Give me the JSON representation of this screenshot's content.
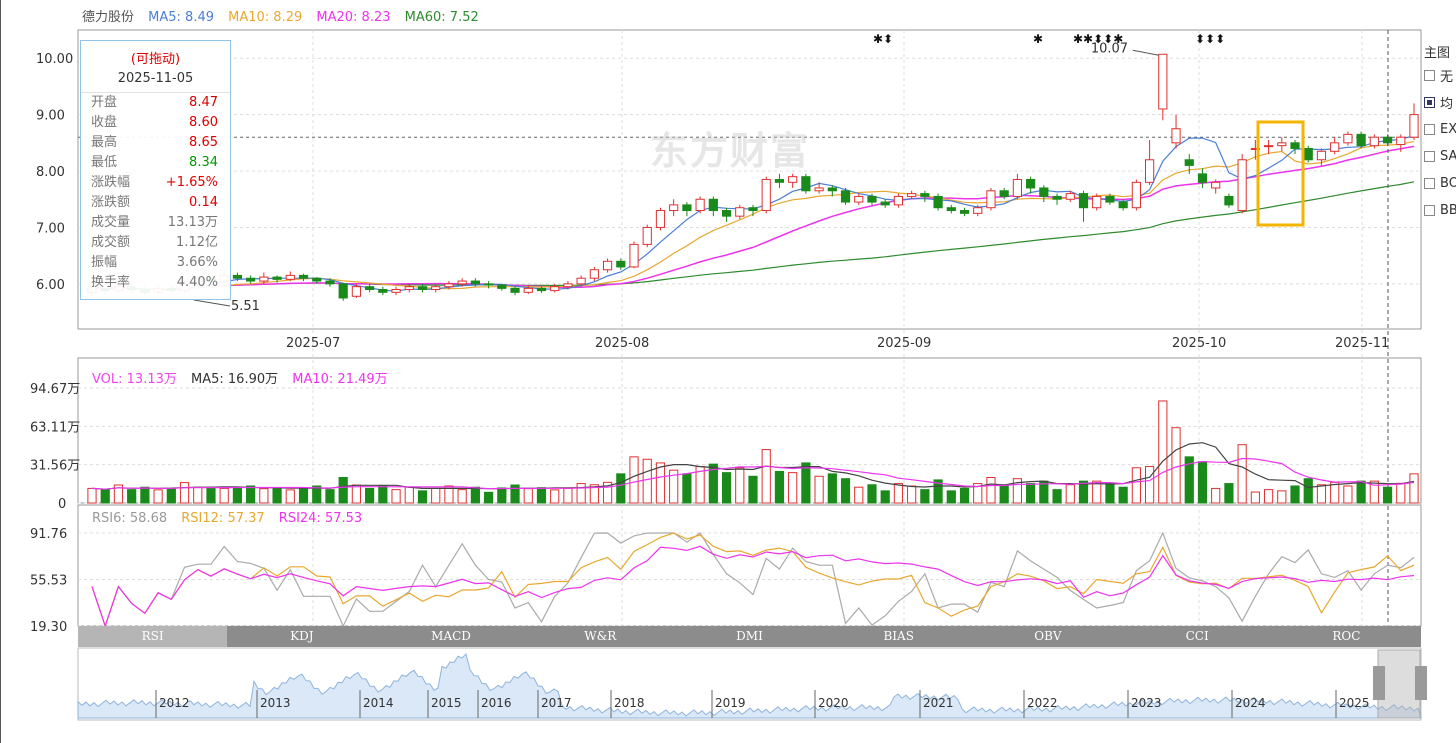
{
  "stock": {
    "name": "德力股份",
    "ma_legend": [
      {
        "label": "MA5: 8.49",
        "color": "#4a7fd6"
      },
      {
        "label": "MA10: 8.29",
        "color": "#e8a830"
      },
      {
        "label": "MA20: 8.23",
        "color": "#ee33ee"
      },
      {
        "label": "MA60: 7.52",
        "color": "#2e8b2e"
      }
    ]
  },
  "tooltip": {
    "hint": "(可拖动)",
    "date": "2025-11-05",
    "rows": [
      {
        "k": "开盘",
        "v": "8.47",
        "color": "#d00"
      },
      {
        "k": "收盘",
        "v": "8.60",
        "color": "#d00"
      },
      {
        "k": "最高",
        "v": "8.65",
        "color": "#d00"
      },
      {
        "k": "最低",
        "v": "8.34",
        "color": "#090"
      },
      {
        "k": "涨跌幅",
        "v": "+1.65%",
        "color": "#d00"
      },
      {
        "k": "涨跌额",
        "v": "0.14",
        "color": "#d00"
      },
      {
        "k": "成交量",
        "v": "13.13万",
        "color": "#777"
      },
      {
        "k": "成交额",
        "v": "1.12亿",
        "color": "#777"
      },
      {
        "k": "振幅",
        "v": "3.66%",
        "color": "#777"
      },
      {
        "k": "换手率",
        "v": "4.40%",
        "color": "#777"
      }
    ]
  },
  "watermark": "东方财富",
  "main_axis": {
    "y_ticks": [
      "10.00",
      "9.00",
      "8.00",
      "7.00",
      "6.00"
    ],
    "x_ticks": [
      "2025-07",
      "2025-08",
      "2025-09",
      "2025-10",
      "2025-11"
    ],
    "annotations": {
      "max": "10.07",
      "min": "5.51"
    },
    "ref_price": 8.6
  },
  "markers": [
    "✱⬍",
    "✱",
    "✱✱⬍⬍✱",
    "⬍⬍⬍"
  ],
  "volume": {
    "legend": [
      {
        "label": "VOL: 13.13万",
        "color": "#ee44ee"
      },
      {
        "label": "MA5: 16.90万",
        "color": "#333333"
      },
      {
        "label": "MA10: 21.49万",
        "color": "#ee33ee"
      }
    ],
    "y_ticks": [
      "94.67万",
      "63.11万",
      "31.56万",
      "0"
    ]
  },
  "rsi": {
    "legend": [
      {
        "label": "RSI6: 58.68",
        "color": "#999999"
      },
      {
        "label": "RSI12: 57.37",
        "color": "#e8a830"
      },
      {
        "label": "RSI24: 57.53",
        "color": "#ee33ee"
      }
    ],
    "y_ticks": [
      "91.76",
      "55.53",
      "19.30"
    ]
  },
  "tabs": [
    "RSI",
    "KDJ",
    "MACD",
    "W&R",
    "DMI",
    "BIAS",
    "OBV",
    "CCI",
    "ROC"
  ],
  "active_tab": "RSI",
  "navigator_years": [
    "2012",
    "2013",
    "2014",
    "2015",
    "2016",
    "2017",
    "2018",
    "2019",
    "2020",
    "2021",
    "2022",
    "2023",
    "2024",
    "2025"
  ],
  "right_panel": {
    "title": "主图",
    "items": [
      {
        "label": "无",
        "checked": false
      },
      {
        "label": "均",
        "checked": true
      },
      {
        "label": "EX",
        "checked": false
      },
      {
        "label": "SA",
        "checked": false
      },
      {
        "label": "BO",
        "checked": false
      },
      {
        "label": "BB",
        "checked": false
      }
    ]
  },
  "chart_data": {
    "type": "candlestick",
    "title": "德力股份",
    "x_range": [
      "2025-06",
      "2025-11-05"
    ],
    "price_range": [
      5.2,
      10.5
    ],
    "candles": [
      [
        5.85,
        5.95,
        6.0,
        5.8
      ],
      [
        5.9,
        5.88,
        5.95,
        5.82
      ],
      [
        5.88,
        5.95,
        6.0,
        5.85
      ],
      [
        5.95,
        5.9,
        6.0,
        5.85
      ],
      [
        5.9,
        5.85,
        5.95,
        5.8
      ],
      [
        5.85,
        5.92,
        5.97,
        5.82
      ],
      [
        5.92,
        5.88,
        5.97,
        5.84
      ],
      [
        5.88,
        6.0,
        6.05,
        5.85
      ],
      [
        6.0,
        6.1,
        6.15,
        5.95
      ],
      [
        6.1,
        6.05,
        6.15,
        6.0
      ],
      [
        6.05,
        6.15,
        6.25,
        6.0
      ],
      [
        6.15,
        6.1,
        6.2,
        6.05
      ],
      [
        6.1,
        6.05,
        6.15,
        6.0
      ],
      [
        6.05,
        6.12,
        6.2,
        6.0
      ],
      [
        6.12,
        6.08,
        6.15,
        6.02
      ],
      [
        6.08,
        6.15,
        6.22,
        6.05
      ],
      [
        6.15,
        6.1,
        6.18,
        6.05
      ],
      [
        6.1,
        6.05,
        6.12,
        6.0
      ],
      [
        6.05,
        6.0,
        6.1,
        5.95
      ],
      [
        6.0,
        5.75,
        6.02,
        5.7
      ],
      [
        5.78,
        5.95,
        6.0,
        5.75
      ],
      [
        5.95,
        5.9,
        6.0,
        5.85
      ],
      [
        5.9,
        5.85,
        5.95,
        5.8
      ],
      [
        5.85,
        5.9,
        5.95,
        5.8
      ],
      [
        5.9,
        5.95,
        6.0,
        5.85
      ],
      [
        5.95,
        5.9,
        6.0,
        5.85
      ],
      [
        5.9,
        5.95,
        6.0,
        5.85
      ],
      [
        5.95,
        6.0,
        6.05,
        5.9
      ],
      [
        6.0,
        6.05,
        6.1,
        5.95
      ],
      [
        6.05,
        6.0,
        6.1,
        5.95
      ],
      [
        6.0,
        5.98,
        6.05,
        5.92
      ],
      [
        5.98,
        5.92,
        6.0,
        5.88
      ],
      [
        5.92,
        5.85,
        5.95,
        5.8
      ],
      [
        5.85,
        5.92,
        5.98,
        5.82
      ],
      [
        5.92,
        5.88,
        5.95,
        5.84
      ],
      [
        5.88,
        5.95,
        6.0,
        5.85
      ],
      [
        5.95,
        6.0,
        6.05,
        5.9
      ],
      [
        6.0,
        6.1,
        6.15,
        5.95
      ],
      [
        6.1,
        6.25,
        6.3,
        6.05
      ],
      [
        6.25,
        6.4,
        6.45,
        6.2
      ],
      [
        6.4,
        6.3,
        6.45,
        6.25
      ],
      [
        6.3,
        6.7,
        6.75,
        6.28
      ],
      [
        6.7,
        7.0,
        7.05,
        6.65
      ],
      [
        7.0,
        7.3,
        7.35,
        6.95
      ],
      [
        7.3,
        7.4,
        7.5,
        7.2
      ],
      [
        7.4,
        7.3,
        7.45,
        7.2
      ],
      [
        7.3,
        7.5,
        7.55,
        7.25
      ],
      [
        7.5,
        7.3,
        7.55,
        7.2
      ],
      [
        7.3,
        7.2,
        7.35,
        7.1
      ],
      [
        7.2,
        7.35,
        7.4,
        7.15
      ],
      [
        7.35,
        7.3,
        7.4,
        7.2
      ],
      [
        7.3,
        7.85,
        7.9,
        7.25
      ],
      [
        7.85,
        7.8,
        7.95,
        7.7
      ],
      [
        7.8,
        7.9,
        7.95,
        7.7
      ],
      [
        7.9,
        7.65,
        7.95,
        7.6
      ],
      [
        7.65,
        7.7,
        7.8,
        7.6
      ],
      [
        7.7,
        7.65,
        7.75,
        7.55
      ],
      [
        7.65,
        7.45,
        7.7,
        7.4
      ],
      [
        7.45,
        7.55,
        7.6,
        7.4
      ],
      [
        7.55,
        7.45,
        7.6,
        7.4
      ],
      [
        7.45,
        7.4,
        7.5,
        7.35
      ],
      [
        7.4,
        7.55,
        7.6,
        7.35
      ],
      [
        7.55,
        7.6,
        7.65,
        7.5
      ],
      [
        7.6,
        7.55,
        7.65,
        7.45
      ],
      [
        7.55,
        7.35,
        7.6,
        7.3
      ],
      [
        7.35,
        7.3,
        7.4,
        7.25
      ],
      [
        7.3,
        7.25,
        7.35,
        7.2
      ],
      [
        7.25,
        7.35,
        7.4,
        7.2
      ],
      [
        7.35,
        7.65,
        7.7,
        7.3
      ],
      [
        7.65,
        7.55,
        7.7,
        7.5
      ],
      [
        7.55,
        7.85,
        7.95,
        7.5
      ],
      [
        7.85,
        7.7,
        7.9,
        7.6
      ],
      [
        7.7,
        7.55,
        7.75,
        7.45
      ],
      [
        7.55,
        7.5,
        7.6,
        7.4
      ],
      [
        7.5,
        7.6,
        7.65,
        7.45
      ],
      [
        7.6,
        7.35,
        7.65,
        7.1
      ],
      [
        7.35,
        7.55,
        7.6,
        7.3
      ],
      [
        7.55,
        7.45,
        7.6,
        7.4
      ],
      [
        7.45,
        7.35,
        7.5,
        7.3
      ],
      [
        7.35,
        7.8,
        7.85,
        7.3
      ],
      [
        7.8,
        8.2,
        8.55,
        7.75
      ],
      [
        9.1,
        10.07,
        10.07,
        8.9
      ],
      [
        8.5,
        8.75,
        9.0,
        8.4
      ],
      [
        8.2,
        8.1,
        8.3,
        7.95
      ],
      [
        7.95,
        7.8,
        8.05,
        7.7
      ],
      [
        7.7,
        7.8,
        7.85,
        7.6
      ],
      [
        7.55,
        7.4,
        7.6,
        7.35
      ],
      [
        7.3,
        8.2,
        8.3,
        7.25
      ],
      [
        8.4,
        8.4,
        8.55,
        8.2
      ],
      [
        8.45,
        8.45,
        8.55,
        8.3
      ],
      [
        8.45,
        8.5,
        8.6,
        8.35
      ],
      [
        8.5,
        8.4,
        8.55,
        8.3
      ],
      [
        8.4,
        8.2,
        8.45,
        8.15
      ],
      [
        8.2,
        8.35,
        8.4,
        8.1
      ],
      [
        8.35,
        8.5,
        8.6,
        8.3
      ],
      [
        8.5,
        8.65,
        8.7,
        8.45
      ],
      [
        8.65,
        8.45,
        8.7,
        8.4
      ],
      [
        8.45,
        8.6,
        8.65,
        8.4
      ],
      [
        8.6,
        8.5,
        8.65,
        8.45
      ],
      [
        8.47,
        8.6,
        8.65,
        8.34
      ],
      [
        8.6,
        9.0,
        9.2,
        8.55
      ]
    ]
  }
}
